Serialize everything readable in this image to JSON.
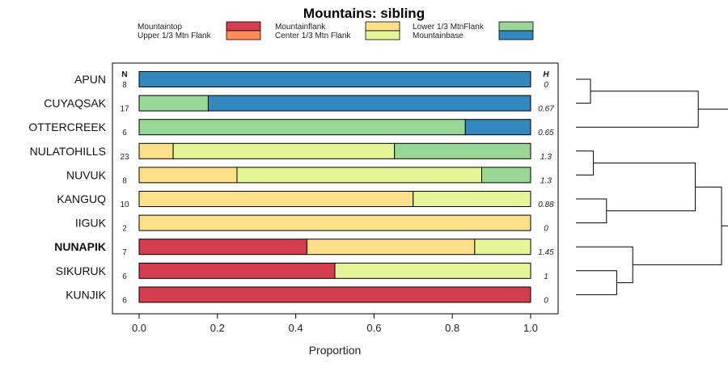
{
  "chart_data": {
    "type": "bar",
    "orientation": "horizontal",
    "stacked": true,
    "title": "Mountains: sibling",
    "xlabel": "Proportion",
    "ylabel": "",
    "xlim": [
      0,
      1
    ],
    "xticks": [
      "0.0",
      "0.2",
      "0.4",
      "0.6",
      "0.8",
      "1.0"
    ],
    "n_header": "N",
    "h_header": "H",
    "legend": [
      {
        "name": "Mountaintop",
        "color": "#d53e4f"
      },
      {
        "name": "Upper 1/3 Mtn Flank",
        "color": "#fc8d59"
      },
      {
        "name": "Mountainflank",
        "color": "#fee08b"
      },
      {
        "name": "Center 1/3 Mtn Flank",
        "color": "#e6f598"
      },
      {
        "name": "Lower 1/3 MtnFlank",
        "color": "#99d594"
      },
      {
        "name": "Mountainbase",
        "color": "#3288bd"
      }
    ],
    "categories": [
      "APUN",
      "CUYAQSAK",
      "OTTERCREEK",
      "NULATOHILLS",
      "NUVUK",
      "KANGUQ",
      "IIGUK",
      "NUNAPIK",
      "SIKURUK",
      "KUNJIK"
    ],
    "highlight": "NUNAPIK",
    "n": [
      "8",
      "17",
      "6",
      "23",
      "8",
      "10",
      "2",
      "7",
      "6",
      "6"
    ],
    "h": [
      "0",
      "0.67",
      "0.65",
      "1.3",
      "1.3",
      "0.88",
      "0",
      "1.45",
      "1",
      "0"
    ],
    "series": [
      {
        "name": "Mountaintop",
        "values": [
          0,
          0,
          0,
          0,
          0,
          0,
          0,
          0.4286,
          0.5,
          1
        ]
      },
      {
        "name": "Upper 1/3 Mtn Flank",
        "values": [
          0,
          0,
          0,
          0,
          0,
          0,
          0,
          0,
          0,
          0
        ]
      },
      {
        "name": "Mountainflank",
        "values": [
          0,
          0,
          0,
          0.087,
          0.25,
          0.7,
          1,
          0.4286,
          0,
          0
        ]
      },
      {
        "name": "Center 1/3 Mtn Flank",
        "values": [
          0,
          0,
          0,
          0.5652,
          0.625,
          0.3,
          0,
          0.1429,
          0.5,
          0
        ]
      },
      {
        "name": "Lower 1/3 MtnFlank",
        "values": [
          0,
          0.1765,
          0.8333,
          0.3478,
          0.125,
          0,
          0,
          0,
          0,
          0
        ]
      },
      {
        "name": "Mountainbase",
        "values": [
          1,
          0.8235,
          0.1667,
          0,
          0,
          0,
          0,
          0,
          0,
          0
        ]
      }
    ],
    "dendrogram": {
      "merges": [
        {
          "a": 0,
          "b": 1,
          "height": 0.1
        },
        {
          "a": 3,
          "b": 4,
          "height": 0.12
        },
        {
          "a": 5,
          "b": 6,
          "height": 0.21
        },
        {
          "a": 8,
          "b": 9,
          "height": 0.28
        },
        {
          "a": 7,
          "b": "m4",
          "height": 0.39
        },
        {
          "a": "m1",
          "b": 2,
          "height": 0.84
        },
        {
          "a": "m2",
          "b": "m3",
          "height": 0.82
        },
        {
          "a": "m7",
          "b": "m5",
          "height": 1.0
        },
        {
          "a": "m6",
          "b": "m8",
          "height": 1.1
        }
      ]
    }
  }
}
